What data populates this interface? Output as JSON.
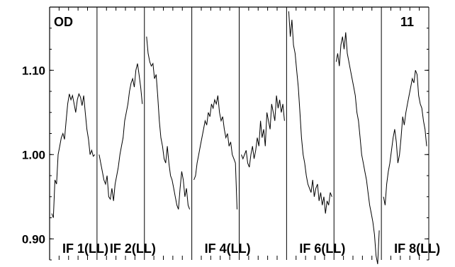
{
  "chart_data": {
    "type": "line",
    "corner_left": "OD",
    "corner_right": "11",
    "ylim": [
      0.875,
      1.175
    ],
    "yticks": [
      {
        "value": 0.9,
        "label": "0.90"
      },
      {
        "value": 1.0,
        "label": "1.00"
      },
      {
        "value": 1.1,
        "label": "1.10"
      }
    ],
    "panels": [
      {
        "label": "IF 1(LL)",
        "values": [
          0.93,
          0.925,
          0.97,
          0.965,
          1.0,
          1.01,
          1.02,
          1.025,
          1.018,
          1.04,
          1.06,
          1.072,
          1.065,
          1.07,
          1.06,
          1.05,
          1.065,
          1.072,
          1.068,
          1.058,
          1.07,
          1.05,
          1.03,
          1.018,
          1.0,
          1.005,
          0.998,
          1.0
        ]
      },
      {
        "label": "IF 2(LL)",
        "values": [
          1.0,
          0.99,
          0.98,
          0.97,
          0.965,
          0.975,
          0.95,
          0.947,
          0.96,
          0.945,
          0.965,
          0.975,
          0.985,
          1.0,
          1.01,
          1.02,
          1.04,
          1.05,
          1.06,
          1.075,
          1.085,
          1.09,
          1.08,
          1.1,
          1.108,
          1.095,
          1.08,
          1.06
        ]
      },
      {
        "label": "",
        "values": [
          1.14,
          1.12,
          1.11,
          1.105,
          1.108,
          1.09,
          1.095,
          1.07,
          1.04,
          1.02,
          1.01,
          0.995,
          0.99,
          1.01,
          0.99,
          0.975,
          0.97,
          0.96,
          0.95,
          0.94,
          0.935,
          0.96,
          0.98,
          0.97,
          0.95,
          0.96,
          0.94,
          0.935
        ]
      },
      {
        "label": "IF 4(LL)",
        "values": [
          0.97,
          0.975,
          0.99,
          1.0,
          1.01,
          1.02,
          1.03,
          1.04,
          1.035,
          1.05,
          1.045,
          1.06,
          1.055,
          1.065,
          1.06,
          1.07,
          1.05,
          1.04,
          1.045,
          1.03,
          1.02,
          1.025,
          1.01,
          1.015,
          1.0,
          0.995,
          0.99,
          0.935
        ]
      },
      {
        "label": "",
        "values": [
          1.0,
          0.995,
          1.0,
          1.005,
          0.99,
          0.985,
          1.0,
          1.01,
          0.995,
          1.005,
          1.02,
          1.01,
          1.04,
          1.02,
          1.03,
          1.01,
          1.05,
          1.04,
          1.03,
          1.06,
          1.05,
          1.04,
          1.07,
          1.055,
          1.065,
          1.05,
          1.06,
          1.04
        ]
      },
      {
        "label": "IF 6(LL)",
        "values": [
          1.17,
          1.14,
          1.16,
          1.13,
          1.12,
          1.1,
          1.08,
          1.05,
          1.02,
          1.0,
          0.99,
          0.975,
          0.965,
          0.96,
          0.955,
          0.97,
          0.95,
          0.96,
          0.965,
          0.945,
          0.955,
          0.94,
          0.95,
          0.93,
          0.945,
          0.94,
          0.955,
          0.95
        ]
      },
      {
        "label": "",
        "values": [
          1.11,
          1.12,
          1.105,
          1.13,
          1.14,
          1.125,
          1.145,
          1.12,
          1.11,
          1.1,
          1.09,
          1.08,
          1.07,
          1.05,
          1.04,
          1.02,
          1.0,
          0.99,
          0.98,
          0.97,
          0.955,
          0.94,
          0.93,
          0.92,
          0.905,
          0.88,
          0.87,
          0.91
        ]
      },
      {
        "label": "IF 8(LL)",
        "values": [
          0.95,
          0.94,
          0.965,
          0.98,
          0.99,
          1.005,
          1.02,
          1.03,
          1.015,
          0.99,
          1.0,
          1.02,
          1.045,
          1.035,
          1.05,
          1.06,
          1.07,
          1.08,
          1.09,
          1.085,
          1.1,
          1.095,
          1.07,
          1.06,
          1.055,
          1.04,
          1.03,
          1.01
        ]
      }
    ]
  }
}
